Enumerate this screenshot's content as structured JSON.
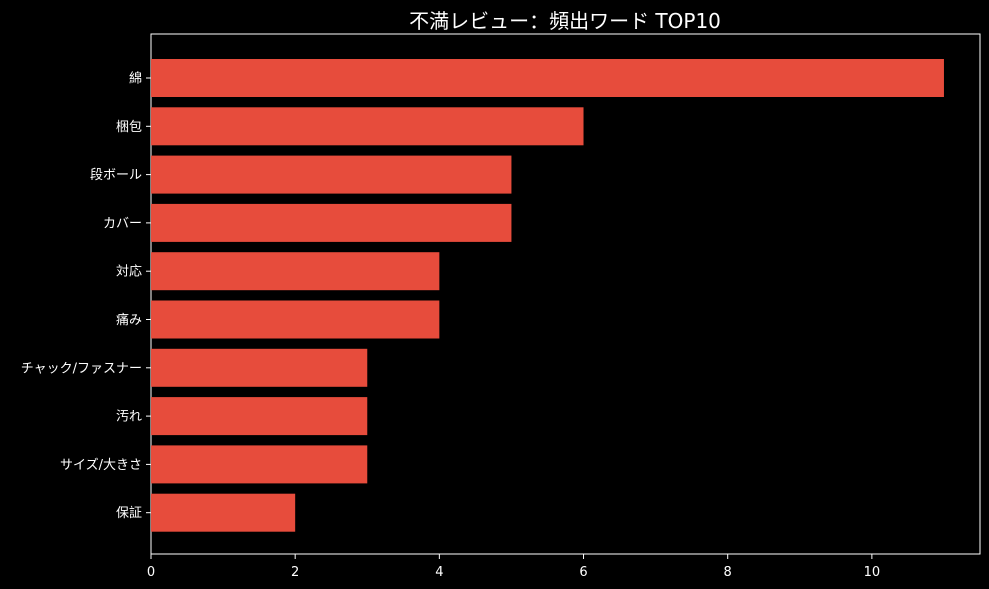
{
  "chart_data": {
    "type": "bar",
    "orientation": "horizontal",
    "title": "不満レビュー：頻出ワード TOP10",
    "xlabel": "",
    "ylabel": "",
    "categories": [
      "綿",
      "梱包",
      "段ボール",
      "カバー",
      "対応",
      "痛み",
      "チャック/ファスナー",
      "汚れ",
      "サイズ/大きさ",
      "保証"
    ],
    "values": [
      11,
      6,
      5,
      5,
      4,
      4,
      3,
      3,
      3,
      2
    ],
    "xlim": [
      0,
      11.5
    ],
    "xticks": [
      0,
      2,
      4,
      6,
      8,
      10
    ],
    "grid": false,
    "bar_color": "#e74c3c",
    "background": "#000000",
    "axis_color": "#ffffff",
    "text_color": "#ffffff"
  }
}
